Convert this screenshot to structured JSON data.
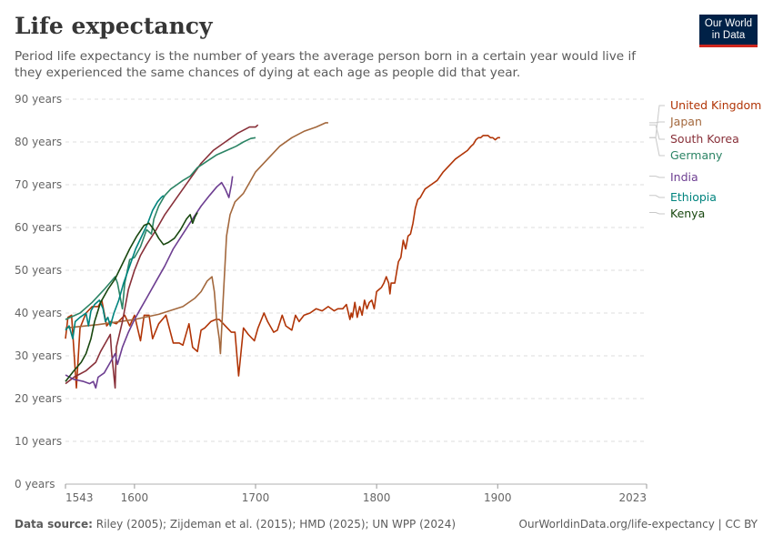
{
  "header": {
    "title": "Life expectancy",
    "subtitle": "Period life expectancy is the number of years the average person born in a certain year would live if they experienced the same chances of dying at each age as people did that year.",
    "logo_line1": "Our World",
    "logo_line2": "in Data"
  },
  "footer": {
    "source_label": "Data source:",
    "source_text": "Riley (2005); Zijdeman et al. (2015); HMD (2025); UN WPP (2024)",
    "url": "OurWorldinData.org/life-expectancy | CC BY"
  },
  "chart_data": {
    "type": "line",
    "title": "Life expectancy",
    "xlim": [
      1543,
      2023
    ],
    "ylim": [
      0,
      90
    ],
    "x_ticks": [
      1543,
      1600,
      1700,
      1800,
      1900,
      2023
    ],
    "y_ticks": [
      0,
      10,
      20,
      30,
      40,
      50,
      60,
      70,
      80,
      90
    ],
    "y_tick_labels": [
      "0 years",
      "10 years",
      "20 years",
      "30 years",
      "40 years",
      "50 years",
      "60 years",
      "70 years",
      "80 years",
      "90 years"
    ],
    "grid": true,
    "legend_placement": "right",
    "series": [
      {
        "name": "United Kingdom",
        "color": "#b13507",
        "points": [
          [
            1543,
            34
          ],
          [
            1545,
            39
          ],
          [
            1548,
            39.5
          ],
          [
            1552,
            22.5
          ],
          [
            1555,
            36.5
          ],
          [
            1560,
            40
          ],
          [
            1565,
            41.5
          ],
          [
            1570,
            41.5
          ],
          [
            1573,
            43
          ],
          [
            1577,
            37
          ],
          [
            1580,
            38
          ],
          [
            1585,
            37.5
          ],
          [
            1592,
            39.5
          ],
          [
            1596,
            37
          ],
          [
            1600,
            39.5
          ],
          [
            1605,
            33.5
          ],
          [
            1608,
            39.5
          ],
          [
            1612,
            39.5
          ],
          [
            1615,
            34
          ],
          [
            1620,
            37.5
          ],
          [
            1626,
            39.5
          ],
          [
            1632,
            33
          ],
          [
            1637,
            33
          ],
          [
            1640,
            32.5
          ],
          [
            1645,
            37.5
          ],
          [
            1648,
            32
          ],
          [
            1652,
            31
          ],
          [
            1655,
            36
          ],
          [
            1658,
            36.5
          ],
          [
            1663,
            38
          ],
          [
            1667,
            38.5
          ],
          [
            1670,
            38.5
          ],
          [
            1675,
            37
          ],
          [
            1680,
            35.5
          ],
          [
            1683,
            35.5
          ],
          [
            1686,
            25.3
          ],
          [
            1690,
            36.5
          ],
          [
            1694,
            35
          ],
          [
            1699,
            33.5
          ],
          [
            1702,
            36.5
          ],
          [
            1707,
            40
          ],
          [
            1710,
            38
          ],
          [
            1715,
            35.5
          ],
          [
            1718,
            36
          ],
          [
            1722,
            39.5
          ],
          [
            1725,
            37
          ],
          [
            1730,
            36
          ],
          [
            1733,
            39.5
          ],
          [
            1736,
            38
          ],
          [
            1740,
            39.5
          ],
          [
            1745,
            40
          ],
          [
            1750,
            41
          ],
          [
            1755,
            40.5
          ],
          [
            1760,
            41.5
          ],
          [
            1765,
            40.5
          ],
          [
            1768,
            41
          ],
          [
            1772,
            41
          ],
          [
            1775,
            42
          ],
          [
            1778,
            38.5
          ],
          [
            1779,
            40
          ],
          [
            1780,
            39
          ],
          [
            1782,
            42.5
          ],
          [
            1784,
            39
          ],
          [
            1786,
            41.5
          ],
          [
            1788,
            39.5
          ],
          [
            1790,
            43
          ],
          [
            1792,
            41
          ],
          [
            1794,
            42.5
          ],
          [
            1796,
            43
          ],
          [
            1798,
            41
          ],
          [
            1800,
            45
          ],
          [
            1802,
            45.5
          ],
          [
            1804,
            46
          ],
          [
            1806,
            47
          ],
          [
            1808,
            48.5
          ],
          [
            1810,
            47
          ],
          [
            1811,
            44.5
          ],
          [
            1812,
            47
          ],
          [
            1815,
            47
          ],
          [
            1818,
            52
          ],
          [
            1820,
            53
          ],
          [
            1822,
            57
          ],
          [
            1824,
            55
          ],
          [
            1826,
            58
          ],
          [
            1828,
            58.5
          ],
          [
            1830,
            61
          ],
          [
            1832,
            64.5
          ],
          [
            1834,
            66.5
          ],
          [
            1836,
            67
          ],
          [
            1838,
            68
          ],
          [
            1840,
            69
          ],
          [
            1845,
            70
          ],
          [
            1850,
            71
          ],
          [
            1855,
            73
          ],
          [
            1860,
            74.5
          ],
          [
            1865,
            76
          ],
          [
            1870,
            77
          ],
          [
            1875,
            78
          ],
          [
            1878,
            79
          ],
          [
            1880,
            79.5
          ],
          [
            1882,
            80.5
          ],
          [
            1884,
            81
          ],
          [
            1886,
            81
          ],
          [
            1888,
            81.5
          ],
          [
            1890,
            81.5
          ],
          [
            1892,
            81.5
          ],
          [
            1894,
            81
          ],
          [
            1896,
            81
          ],
          [
            1898,
            80.5
          ],
          [
            1900,
            81
          ],
          [
            1902,
            81
          ]
        ]
      },
      {
        "name": "Japan",
        "color": "#a3683d",
        "points": [
          [
            1543,
            36.5
          ],
          [
            1570,
            37.3
          ],
          [
            1600,
            38.5
          ],
          [
            1620,
            39.7
          ],
          [
            1640,
            41.5
          ],
          [
            1650,
            43.5
          ],
          [
            1655,
            45
          ],
          [
            1660,
            47.5
          ],
          [
            1664,
            48.5
          ],
          [
            1666,
            45
          ],
          [
            1668,
            38
          ],
          [
            1670,
            34
          ],
          [
            1671,
            30.5
          ],
          [
            1673,
            42
          ],
          [
            1676,
            58
          ],
          [
            1679,
            63
          ],
          [
            1683,
            66
          ],
          [
            1690,
            68
          ],
          [
            1695,
            70.5
          ],
          [
            1700,
            73
          ],
          [
            1710,
            76
          ],
          [
            1720,
            79
          ],
          [
            1730,
            81
          ],
          [
            1740,
            82.5
          ],
          [
            1750,
            83.5
          ],
          [
            1758,
            84.5
          ],
          [
            1760,
            84.5
          ]
        ]
      },
      {
        "name": "South Korea",
        "color": "#883039",
        "points": [
          [
            1543,
            23.5
          ],
          [
            1550,
            25
          ],
          [
            1560,
            26.5
          ],
          [
            1568,
            28.5
          ],
          [
            1572,
            31
          ],
          [
            1577,
            33.5
          ],
          [
            1580,
            35
          ],
          [
            1581,
            31
          ],
          [
            1584,
            22.5
          ],
          [
            1585,
            32
          ],
          [
            1590,
            38
          ],
          [
            1595,
            45.5
          ],
          [
            1600,
            50
          ],
          [
            1605,
            53.5
          ],
          [
            1610,
            56
          ],
          [
            1618,
            59.5
          ],
          [
            1625,
            63
          ],
          [
            1635,
            67
          ],
          [
            1645,
            71
          ],
          [
            1655,
            75
          ],
          [
            1665,
            78
          ],
          [
            1675,
            80
          ],
          [
            1685,
            82
          ],
          [
            1695,
            83.5
          ],
          [
            1700,
            83.5
          ],
          [
            1702,
            84
          ]
        ]
      },
      {
        "name": "Germany",
        "color": "#2c8465",
        "points": [
          [
            1543,
            38.5
          ],
          [
            1555,
            40
          ],
          [
            1565,
            42.5
          ],
          [
            1575,
            45.5
          ],
          [
            1584,
            48.5
          ],
          [
            1586,
            47
          ],
          [
            1590,
            41
          ],
          [
            1592,
            47
          ],
          [
            1596,
            52.5
          ],
          [
            1600,
            53
          ],
          [
            1605,
            55.5
          ],
          [
            1610,
            59.5
          ],
          [
            1614,
            58.5
          ],
          [
            1616,
            62
          ],
          [
            1620,
            65
          ],
          [
            1625,
            67.5
          ],
          [
            1630,
            69
          ],
          [
            1635,
            70
          ],
          [
            1640,
            71
          ],
          [
            1646,
            72
          ],
          [
            1652,
            74
          ],
          [
            1660,
            75.5
          ],
          [
            1668,
            77
          ],
          [
            1676,
            78
          ],
          [
            1684,
            79
          ],
          [
            1690,
            80
          ],
          [
            1696,
            80.8
          ],
          [
            1700,
            81
          ]
        ]
      },
      {
        "name": "India",
        "color": "#6d3e91",
        "points": [
          [
            1543,
            25.5
          ],
          [
            1550,
            24.5
          ],
          [
            1558,
            24
          ],
          [
            1563,
            23.5
          ],
          [
            1566,
            24
          ],
          [
            1568,
            22.5
          ],
          [
            1570,
            25
          ],
          [
            1575,
            26
          ],
          [
            1580,
            28.5
          ],
          [
            1584,
            30.5
          ],
          [
            1586,
            28
          ],
          [
            1590,
            32
          ],
          [
            1595,
            35.5
          ],
          [
            1600,
            38.5
          ],
          [
            1605,
            41
          ],
          [
            1610,
            43.5
          ],
          [
            1618,
            47.5
          ],
          [
            1625,
            51
          ],
          [
            1632,
            55
          ],
          [
            1640,
            58.5
          ],
          [
            1648,
            62
          ],
          [
            1655,
            65
          ],
          [
            1662,
            67.5
          ],
          [
            1668,
            69.5
          ],
          [
            1672,
            70.5
          ],
          [
            1675,
            69
          ],
          [
            1678,
            67
          ],
          [
            1680,
            70
          ],
          [
            1681,
            72
          ]
        ]
      },
      {
        "name": "Ethiopia",
        "color": "#00847e",
        "points": [
          [
            1543,
            36
          ],
          [
            1546,
            37
          ],
          [
            1549,
            34
          ],
          [
            1551,
            38
          ],
          [
            1555,
            39
          ],
          [
            1560,
            40
          ],
          [
            1562,
            37
          ],
          [
            1564,
            40.5
          ],
          [
            1567,
            42
          ],
          [
            1571,
            43
          ],
          [
            1574,
            41
          ],
          [
            1576,
            38
          ],
          [
            1578,
            39
          ],
          [
            1580,
            37
          ],
          [
            1583,
            40
          ],
          [
            1587,
            43
          ],
          [
            1591,
            47
          ],
          [
            1596,
            51
          ],
          [
            1601,
            55
          ],
          [
            1606,
            58
          ],
          [
            1611,
            61
          ],
          [
            1615,
            64
          ],
          [
            1619,
            66
          ],
          [
            1622,
            67
          ],
          [
            1624,
            67.5
          ]
        ]
      },
      {
        "name": "Kenya",
        "color": "#18470f",
        "points": [
          [
            1543,
            24
          ],
          [
            1550,
            26.5
          ],
          [
            1556,
            28.5
          ],
          [
            1560,
            30.5
          ],
          [
            1564,
            34
          ],
          [
            1567,
            38
          ],
          [
            1572,
            42.5
          ],
          [
            1578,
            45.5
          ],
          [
            1584,
            48
          ],
          [
            1590,
            51.5
          ],
          [
            1596,
            55
          ],
          [
            1602,
            58
          ],
          [
            1608,
            60.5
          ],
          [
            1612,
            61
          ],
          [
            1616,
            59.5
          ],
          [
            1620,
            57.5
          ],
          [
            1624,
            56
          ],
          [
            1628,
            56.5
          ],
          [
            1633,
            57.5
          ],
          [
            1638,
            59.5
          ],
          [
            1643,
            62
          ],
          [
            1646,
            63
          ],
          [
            1648,
            61
          ],
          [
            1650,
            62.5
          ],
          [
            1652,
            63.5
          ]
        ]
      }
    ]
  }
}
